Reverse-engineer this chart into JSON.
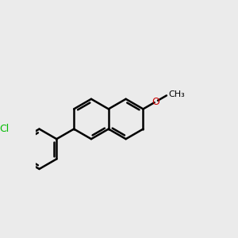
{
  "background_color": "#ebebeb",
  "line_color": "#000000",
  "cl_color": "#00bb00",
  "o_color": "#cc0000",
  "bond_width": 1.8,
  "figsize": [
    3.0,
    3.0
  ],
  "dpi": 100,
  "xlim": [
    -4.5,
    5.5
  ],
  "ylim": [
    -3.5,
    3.5
  ]
}
